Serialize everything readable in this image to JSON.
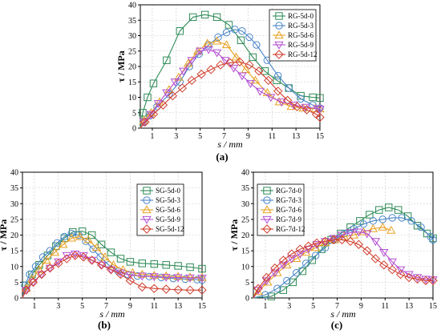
{
  "chart_data": [
    {
      "type": "line",
      "panel_label": "(a)",
      "xlabel": "s / mm",
      "ylabel": "τ / MPa",
      "xlim": [
        0,
        15
      ],
      "ylim": [
        0,
        40
      ],
      "xticks": [
        1,
        3,
        5,
        7,
        9,
        11,
        13,
        15
      ],
      "yticks": [
        0,
        5,
        10,
        15,
        20,
        25,
        30,
        35,
        40
      ],
      "grid": true,
      "legend_placement": "top-right",
      "series": [
        {
          "name": "RG-5d-0",
          "marker": "square",
          "color": "#2e8b57",
          "x": [
            0,
            0.2,
            0.6,
            1.1,
            2.2,
            3.3,
            4.4,
            5.4,
            6.4,
            7.4,
            8.4,
            9.4,
            10.4,
            11.4,
            12.4,
            13.4,
            14.4,
            15
          ],
          "y": [
            0,
            5,
            10,
            14.5,
            22,
            31.5,
            36,
            36.8,
            36,
            33.5,
            28.5,
            23,
            18.5,
            15.5,
            13,
            10.5,
            10,
            9.8
          ]
        },
        {
          "name": "RG-5d-3",
          "marker": "circle",
          "color": "#4a86c8",
          "x": [
            0,
            0.3,
            0.8,
            1.4,
            2.4,
            3.3,
            4.1,
            4.9,
            5.7,
            6.5,
            7.2,
            7.9,
            8.5,
            9.1,
            9.7,
            10.6,
            11.5,
            12.4,
            13.4,
            14.4,
            15
          ],
          "y": [
            0,
            2,
            4,
            7,
            11,
            15,
            20,
            24,
            27,
            29.5,
            31,
            32,
            31.5,
            29.5,
            27,
            22,
            17,
            13,
            9.5,
            7.5,
            6.5
          ]
        },
        {
          "name": "RG-5d-6",
          "marker": "triangle-up",
          "color": "#e8a020",
          "x": [
            0,
            0.3,
            0.9,
            1.6,
            2.4,
            3.2,
            4.0,
            4.8,
            5.6,
            6.4,
            7.2,
            8.0,
            8.8,
            9.6,
            10.6,
            11.6,
            12.6,
            13.6,
            14.6,
            15
          ],
          "y": [
            0,
            2.5,
            5,
            8.5,
            12.5,
            16.5,
            21,
            25,
            27.5,
            28.2,
            27,
            23,
            19,
            15.5,
            11.5,
            8.5,
            7,
            6.5,
            6.3,
            6.2
          ]
        },
        {
          "name": "RG-5d-9",
          "marker": "triangle-down",
          "color": "#b44fd4",
          "x": [
            0,
            0.3,
            0.9,
            1.5,
            2.2,
            2.9,
            3.6,
            4.3,
            5.0,
            5.7,
            6.4,
            7.1,
            7.8,
            8.5,
            9.2,
            10.0,
            10.9,
            11.8,
            12.8,
            13.8,
            14.8,
            15
          ],
          "y": [
            0,
            2,
            4.5,
            8,
            11.5,
            15,
            18.5,
            22,
            25,
            25.5,
            24.5,
            22,
            19.5,
            17,
            14.5,
            12,
            10,
            8.5,
            7.5,
            6.8,
            6.3,
            6.2
          ]
        },
        {
          "name": "RG-5d-12",
          "marker": "diamond",
          "color": "#d04030",
          "x": [
            0,
            0.4,
            1.1,
            1.9,
            2.7,
            3.5,
            4.3,
            5.1,
            5.9,
            6.7,
            7.5,
            8.3,
            9.1,
            9.9,
            10.7,
            11.5,
            12.3,
            13.1,
            13.9,
            14.7,
            15
          ],
          "y": [
            0,
            2,
            4.5,
            7.5,
            10.5,
            13,
            15.5,
            17.5,
            19,
            20.5,
            21.2,
            21.5,
            20.5,
            18.5,
            15.5,
            12,
            9,
            7,
            6,
            4.5,
            3.5
          ]
        }
      ]
    },
    {
      "type": "line",
      "panel_label": "(b)",
      "xlabel": "s / mm",
      "ylabel": "τ / MPa",
      "xlim": [
        0,
        15
      ],
      "ylim": [
        0,
        40
      ],
      "xticks": [
        1,
        3,
        5,
        7,
        9,
        11,
        13,
        15
      ],
      "yticks": [
        0,
        5,
        10,
        15,
        20,
        25,
        30,
        35,
        40
      ],
      "grid": true,
      "legend_placement": "top-right",
      "series": [
        {
          "name": "SG-5d-0",
          "marker": "square",
          "color": "#2e8b57",
          "x": [
            0,
            0.3,
            0.8,
            1.4,
            2.1,
            2.8,
            3.5,
            4.2,
            5.0,
            5.8,
            6.6,
            7.4,
            8.2,
            9.0,
            10.0,
            11.0,
            12.0,
            13.0,
            14.0,
            15
          ],
          "y": [
            0,
            4,
            7.5,
            10.5,
            13.5,
            16.5,
            19,
            21,
            21.2,
            20,
            17,
            14.5,
            12.5,
            11.5,
            11,
            10.8,
            10.5,
            10.2,
            9.8,
            9.3
          ]
        },
        {
          "name": "SG-5d-3",
          "marker": "circle",
          "color": "#4a86c8",
          "x": [
            0,
            0.2,
            0.6,
            1.1,
            1.7,
            2.3,
            2.9,
            3.5,
            4.1,
            4.7,
            5.3,
            5.9,
            6.5,
            7.2,
            8.0,
            8.8,
            9.6,
            10.6,
            11.6,
            12.6,
            13.6,
            14.6,
            15
          ],
          "y": [
            0,
            4,
            7.5,
            10,
            13,
            15,
            17.5,
            19.5,
            20.5,
            20,
            18,
            15.5,
            13,
            10.5,
            8.5,
            7.5,
            7,
            6.8,
            6.5,
            6.2,
            6,
            5.8,
            5.7
          ]
        },
        {
          "name": "SG-5d-6",
          "marker": "triangle-up",
          "color": "#e8a020",
          "x": [
            0,
            0.3,
            0.8,
            1.4,
            2.0,
            2.7,
            3.4,
            4.1,
            4.8,
            5.5,
            6.2,
            6.9,
            7.6,
            8.4,
            9.2,
            10.0,
            11.0,
            12.0,
            13.0,
            14.0,
            15
          ],
          "y": [
            0,
            3,
            6,
            9,
            12,
            14.5,
            17,
            19,
            19.5,
            18.5,
            16,
            13,
            10.5,
            9,
            8,
            7.5,
            7.2,
            7,
            6.8,
            6.6,
            6.5
          ]
        },
        {
          "name": "SG-5d-9",
          "marker": "triangle-down",
          "color": "#b44fd4",
          "x": [
            0,
            0.3,
            0.9,
            1.6,
            2.3,
            3.0,
            3.7,
            4.4,
            5.1,
            5.8,
            6.6,
            7.4,
            8.2,
            9.0,
            10.0,
            11.0,
            12.0,
            13.0,
            14.0,
            15
          ],
          "y": [
            0,
            2.5,
            5,
            7.5,
            9.5,
            11.5,
            13.5,
            14,
            13.5,
            12,
            10.5,
            9,
            8,
            7.3,
            7,
            6.8,
            6.6,
            6.5,
            6.4,
            6.3
          ]
        },
        {
          "name": "SG-5d-12",
          "marker": "diamond",
          "color": "#d04030",
          "x": [
            0,
            0.3,
            0.9,
            1.6,
            2.3,
            3.0,
            3.7,
            4.4,
            5.1,
            5.8,
            6.6,
            7.4,
            8.2,
            9.0,
            10.0,
            11.0,
            12.0,
            13.0,
            14.0,
            15
          ],
          "y": [
            0,
            2.5,
            5,
            7.5,
            9.5,
            11,
            12.5,
            13.5,
            13,
            12,
            10.5,
            9,
            7.5,
            5.5,
            3.5,
            3,
            2.8,
            2.6,
            2.5,
            2.5
          ]
        }
      ]
    },
    {
      "type": "line",
      "panel_label": "(c)",
      "xlabel": "s / mm",
      "ylabel": "τ / MPa",
      "xlim": [
        0,
        15
      ],
      "ylim": [
        0,
        40
      ],
      "xticks": [
        1,
        3,
        5,
        7,
        9,
        11,
        13,
        15
      ],
      "yticks": [
        0,
        5,
        10,
        15,
        20,
        25,
        30,
        35,
        40
      ],
      "grid": true,
      "legend_placement": "top-left",
      "series": [
        {
          "name": "RG-7d-0",
          "marker": "square",
          "color": "#2e8b57",
          "x": [
            0,
            1.5,
            2.5,
            3.3,
            4.1,
            4.9,
            5.7,
            6.5,
            7.3,
            8.1,
            8.9,
            9.7,
            10.5,
            11.3,
            12.1,
            12.9,
            13.7,
            14.5,
            15
          ],
          "y": [
            0,
            0.5,
            2.5,
            5,
            8.5,
            12,
            15.5,
            18.5,
            20.5,
            22.5,
            24.5,
            26.5,
            28,
            28.8,
            28,
            26,
            23,
            20.5,
            19
          ]
        },
        {
          "name": "RG-7d-3",
          "marker": "circle",
          "color": "#4a86c8",
          "x": [
            0,
            1.0,
            2.0,
            2.8,
            3.6,
            4.4,
            5.2,
            6.0,
            6.8,
            7.6,
            8.4,
            9.2,
            10.0,
            10.8,
            11.6,
            12.4,
            13.2,
            14.0,
            14.8,
            15
          ],
          "y": [
            0,
            1,
            3,
            5.5,
            8,
            11,
            13.5,
            16,
            18.5,
            20.5,
            22,
            23.5,
            24.5,
            25,
            25.5,
            25.5,
            24.5,
            22.5,
            19.5,
            18.5
          ]
        },
        {
          "name": "RG-7d-6",
          "marker": "triangle-up",
          "color": "#e8a020",
          "x": [
            0,
            0.4,
            1.2,
            2.0,
            2.8,
            3.6,
            4.4,
            5.2,
            6.0,
            6.8,
            7.6,
            8.4,
            9.2,
            10.0,
            10.8,
            11.5
          ],
          "y": [
            0,
            2,
            5,
            8,
            10.5,
            12.5,
            14.5,
            16,
            17.5,
            18.5,
            19.5,
            20,
            21,
            22,
            22.5,
            21.5
          ]
        },
        {
          "name": "RG-7d-9",
          "marker": "triangle-down",
          "color": "#b44fd4",
          "x": [
            0,
            0.4,
            1.1,
            1.8,
            2.5,
            3.2,
            3.9,
            4.6,
            5.3,
            6.0,
            6.7,
            7.4,
            8.1,
            8.8,
            9.5,
            10.2,
            10.9,
            11.6,
            12.3,
            13.0,
            13.7,
            14.4,
            15
          ],
          "y": [
            0,
            2.5,
            5.5,
            8,
            10.5,
            12.5,
            14,
            15.5,
            17,
            18,
            19,
            20,
            20.8,
            21,
            20.5,
            18,
            14.5,
            11.5,
            9,
            7.5,
            6.5,
            6,
            5.8
          ]
        },
        {
          "name": "RG-7d-12",
          "marker": "diamond",
          "color": "#d04030",
          "x": [
            0,
            0.4,
            1.1,
            1.8,
            2.5,
            3.2,
            3.9,
            4.6,
            5.3,
            6.0,
            6.7,
            7.4,
            8.1,
            8.8,
            9.5,
            10.2,
            10.9,
            11.6,
            12.3,
            13.0,
            13.7,
            14.4,
            15
          ],
          "y": [
            0,
            3,
            6.5,
            9.5,
            12,
            14,
            15.5,
            16.5,
            17.5,
            18,
            18.5,
            18.5,
            18,
            17,
            15,
            12.5,
            10.5,
            9,
            7.5,
            6.5,
            6,
            5.5,
            5.5
          ]
        }
      ]
    }
  ]
}
